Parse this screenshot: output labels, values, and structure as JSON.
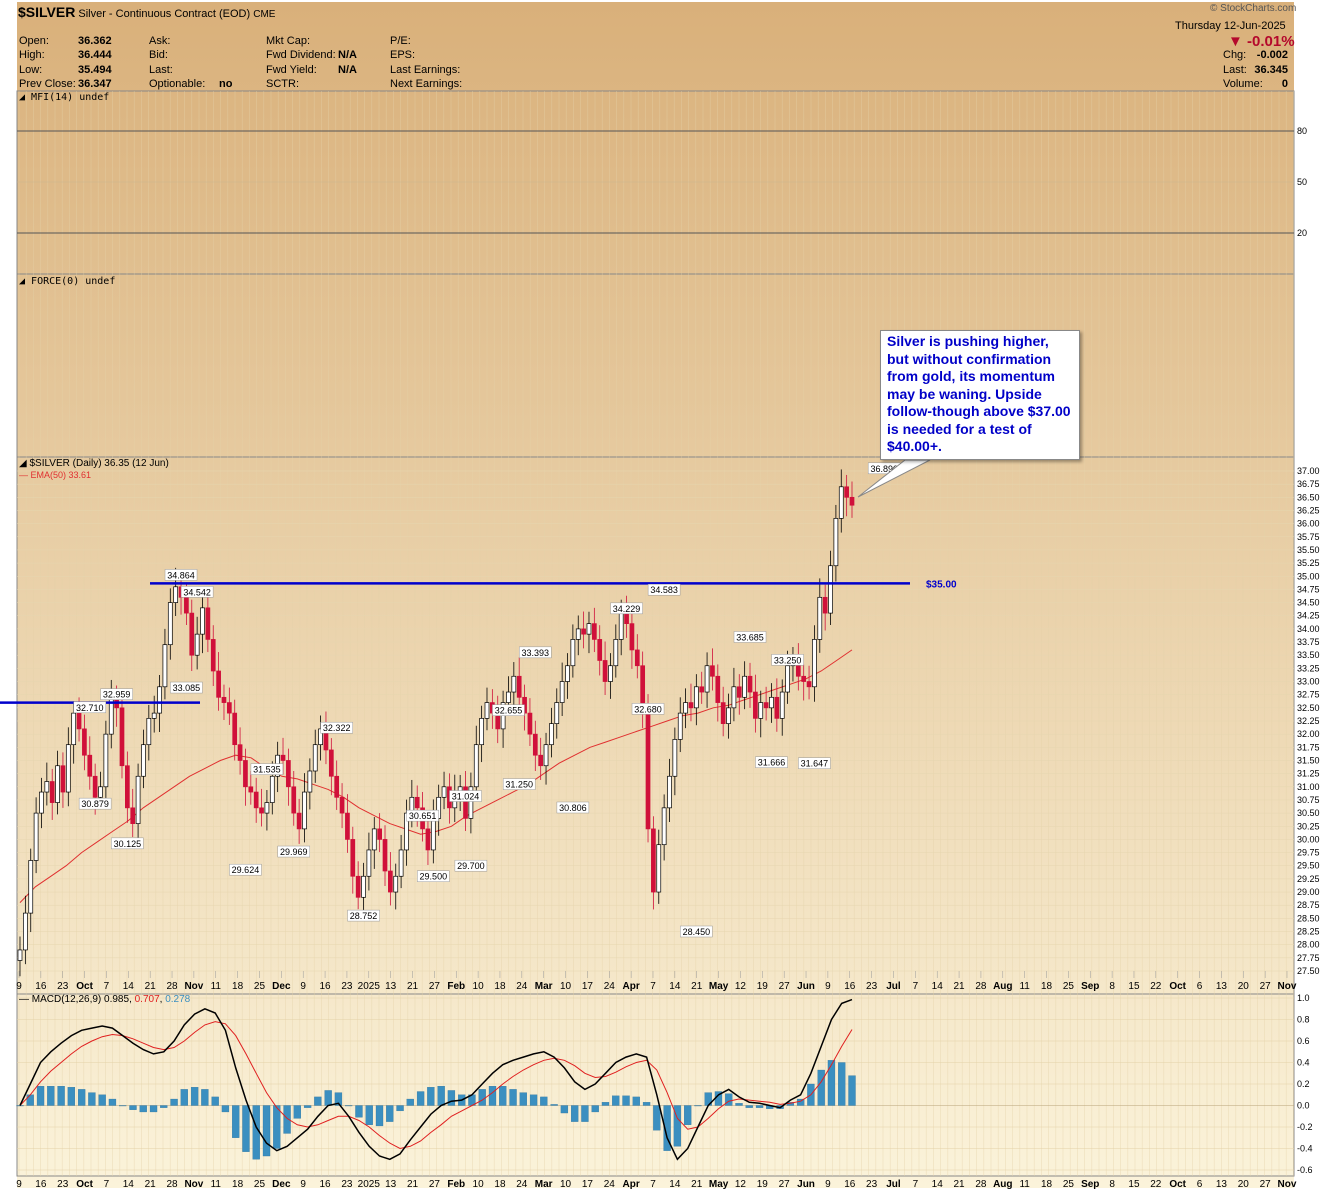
{
  "header": {
    "symbol": "$SILVER",
    "description": "Silver - Continuous Contract (EOD)",
    "exchange": "CME",
    "date_line": "Thursday  12-Jun-2025",
    "change_pct": "-0.01%",
    "watermark": "© StockCharts.com",
    "quote": {
      "open_label": "Open:",
      "open": "36.362",
      "high_label": "High:",
      "high": "36.444",
      "low_label": "Low:",
      "low": "35.494",
      "prev_label": "Prev Close:",
      "prev": "36.347",
      "ask_label": "Ask:",
      "bid_label": "Bid:",
      "last_label": "Last:",
      "optionable_label": "Optionable:",
      "optionable": "no",
      "mktcap_label": "Mkt Cap:",
      "fwddiv_label": "Fwd Dividend:",
      "fwddiv": "N/A",
      "fwdyield_label": "Fwd Yield:",
      "fwdyield": "N/A",
      "sctr_label": "SCTR:",
      "pe_label": "P/E:",
      "eps_label": "EPS:",
      "lastearn_label": "Last Earnings:",
      "nextearn_label": "Next Earnings:",
      "chg_label": "Chg:",
      "chg": "-0.002",
      "last_r_label": "Last:",
      "last_r": "36.345",
      "volume_label": "Volume:",
      "volume": "0"
    }
  },
  "colors": {
    "panel_bg": "#f5e8c4",
    "header_bg": "#d8b27e",
    "up_candle": "#000000",
    "down_candle": "#d0103a",
    "ema": "#e03030",
    "macd_line": "#000000",
    "signal_line": "#e02020",
    "histogram": "#3b8fc0",
    "hline": "#0000cc"
  },
  "chart_data": [
    {
      "type": "line",
      "title": "MFI(14) undef",
      "yticks": [
        "80",
        "50",
        "20"
      ],
      "ylim": [
        0,
        100
      ],
      "series": []
    },
    {
      "type": "line",
      "title": "FORCE(0) undef",
      "series": []
    },
    {
      "type": "candlestick",
      "title": "$SILVER (Daily) 36.35 (12 Jun)",
      "legend_ema": "EMA(50) 33.61",
      "ylim": [
        27.25,
        37.25
      ],
      "yticks": [
        "37.00",
        "36.75",
        "36.50",
        "36.25",
        "36.00",
        "35.75",
        "35.50",
        "35.25",
        "35.00",
        "34.75",
        "34.50",
        "34.25",
        "34.00",
        "33.75",
        "33.50",
        "33.25",
        "33.00",
        "32.75",
        "32.50",
        "32.25",
        "32.00",
        "31.75",
        "31.50",
        "31.25",
        "31.00",
        "30.75",
        "30.50",
        "30.25",
        "30.00",
        "29.75",
        "29.50",
        "29.25",
        "29.00",
        "28.75",
        "28.50",
        "28.25",
        "28.00",
        "27.75",
        "27.50"
      ],
      "xticks": [
        "9",
        "16",
        "23",
        "Oct",
        "7",
        "14",
        "21",
        "28",
        "Nov",
        "11",
        "18",
        "25",
        "Dec",
        "9",
        "16",
        "23",
        "2025",
        "13",
        "21",
        "27",
        "Feb",
        "10",
        "18",
        "24",
        "Mar",
        "10",
        "17",
        "24",
        "Apr",
        "7",
        "14",
        "21",
        "May",
        "12",
        "19",
        "27",
        "Jun",
        "9",
        "16",
        "23",
        "Jul",
        "7",
        "14",
        "21",
        "28",
        "Aug",
        "11",
        "18",
        "25",
        "Sep",
        "8",
        "15",
        "22",
        "Oct",
        "6",
        "13",
        "20",
        "27",
        "Nov"
      ],
      "close_series": [
        27.9,
        28.6,
        29.6,
        30.5,
        30.9,
        31.1,
        30.7,
        31.4,
        30.9,
        31.8,
        32.4,
        32.1,
        31.6,
        31.2,
        30.8,
        31.0,
        32.0,
        32.7,
        32.5,
        31.4,
        30.6,
        30.3,
        31.2,
        31.8,
        32.3,
        32.4,
        32.9,
        33.7,
        34.5,
        34.8,
        34.6,
        34.3,
        33.5,
        33.9,
        34.4,
        33.8,
        33.2,
        32.7,
        32.6,
        32.4,
        31.8,
        31.5,
        31.0,
        30.9,
        30.6,
        30.5,
        30.7,
        31.2,
        31.6,
        31.5,
        31.0,
        30.5,
        30.2,
        30.9,
        31.3,
        31.8,
        32.1,
        31.7,
        31.2,
        30.8,
        30.5,
        30.0,
        29.3,
        28.9,
        29.3,
        29.8,
        30.2,
        30.0,
        29.4,
        29.0,
        29.3,
        29.8,
        30.5,
        30.8,
        30.6,
        30.2,
        29.8,
        30.4,
        30.8,
        31.0,
        30.6,
        30.9,
        31.0,
        30.4,
        31.0,
        31.8,
        32.3,
        32.6,
        32.4,
        32.1,
        32.6,
        32.8,
        33.1,
        32.7,
        32.4,
        32.0,
        31.6,
        31.4,
        31.8,
        32.2,
        32.6,
        33.0,
        33.3,
        33.8,
        34.0,
        33.9,
        34.1,
        33.8,
        33.4,
        33.0,
        33.3,
        33.8,
        34.3,
        34.1,
        33.6,
        33.3,
        32.4,
        30.2,
        29.0,
        29.9,
        30.6,
        31.2,
        31.9,
        32.4,
        32.6,
        32.5,
        32.9,
        32.8,
        33.3,
        33.1,
        32.6,
        32.2,
        32.5,
        32.9,
        32.7,
        33.1,
        32.8,
        32.3,
        32.6,
        32.5,
        32.7,
        32.3,
        32.8,
        33.3,
        33.4,
        33.1,
        33.0,
        32.9,
        33.8,
        34.6,
        34.3,
        35.2,
        36.1,
        36.7,
        36.5,
        36.35
      ],
      "ema_series": [
        28.8,
        29.1,
        29.3,
        29.5,
        29.75,
        29.95,
        30.15,
        30.35,
        30.6,
        30.8,
        31.0,
        31.2,
        31.35,
        31.5,
        31.6,
        31.55,
        31.35,
        31.2,
        31.15,
        31.05,
        30.95,
        30.8,
        30.6,
        30.45,
        30.3,
        30.2,
        30.1,
        30.15,
        30.25,
        30.45,
        30.6,
        30.75,
        30.9,
        31.05,
        31.25,
        31.45,
        31.6,
        31.75,
        31.85,
        31.95,
        32.05,
        32.15,
        32.25,
        32.35,
        32.4,
        32.5,
        32.55,
        32.65,
        32.75,
        32.85,
        32.95,
        33.05,
        33.2,
        33.4,
        33.6
      ],
      "annotations": [
        {
          "text": "34.864",
          "x": 30,
          "y": 34.864
        },
        {
          "text": "34.542",
          "x": 33,
          "y": 34.542
        },
        {
          "text": "33.085",
          "x": 31,
          "y": 33.085
        },
        {
          "text": "32.710",
          "x": 13,
          "y": 32.71
        },
        {
          "text": "32.959",
          "x": 18,
          "y": 32.959
        },
        {
          "text": "30.879",
          "x": 14,
          "y": 30.879
        },
        {
          "text": "30.125",
          "x": 20,
          "y": 30.125
        },
        {
          "text": "31.535",
          "x": 46,
          "y": 31.535
        },
        {
          "text": "29.624",
          "x": 42,
          "y": 29.624
        },
        {
          "text": "29.969",
          "x": 51,
          "y": 29.969
        },
        {
          "text": "32.322",
          "x": 59,
          "y": 32.322
        },
        {
          "text": "28.752",
          "x": 64,
          "y": 28.752
        },
        {
          "text": "30.651",
          "x": 75,
          "y": 30.651
        },
        {
          "text": "29.500",
          "x": 77,
          "y": 29.5
        },
        {
          "text": "31.024",
          "x": 83,
          "y": 31.024
        },
        {
          "text": "29.700",
          "x": 84,
          "y": 29.7
        },
        {
          "text": "32.655",
          "x": 91,
          "y": 32.655
        },
        {
          "text": "31.250",
          "x": 93,
          "y": 31.25
        },
        {
          "text": "33.393",
          "x": 96,
          "y": 33.393
        },
        {
          "text": "30.806",
          "x": 103,
          "y": 30.806
        },
        {
          "text": "34.229",
          "x": 113,
          "y": 34.229
        },
        {
          "text": "32.680",
          "x": 117,
          "y": 32.68
        },
        {
          "text": "34.583",
          "x": 120,
          "y": 34.583
        },
        {
          "text": "28.450",
          "x": 126,
          "y": 28.45
        },
        {
          "text": "33.685",
          "x": 136,
          "y": 33.685
        },
        {
          "text": "31.666",
          "x": 140,
          "y": 31.666
        },
        {
          "text": "33.250",
          "x": 143,
          "y": 33.25
        },
        {
          "text": "31.647",
          "x": 148,
          "y": 31.647
        },
        {
          "text": "36.890",
          "x": 161,
          "y": 36.89
        }
      ],
      "hlines": [
        {
          "value": 34.864,
          "label": "$35.00"
        },
        {
          "value": 32.6,
          "label": ""
        }
      ],
      "callout": "Silver is pushing higher, but without confirmation from gold, its momentum may be waning. Upside follow-though above $37.00 is needed for a test of $40.00+."
    },
    {
      "type": "line",
      "title_prefix": "MACD(12,26,9)",
      "title_v1": "0.985",
      "title_v2": "0.707",
      "title_v3": "0.278",
      "ylim": [
        -0.65,
        1.05
      ],
      "yticks": [
        "1.0",
        "0.8",
        "0.6",
        "0.4",
        "0.2",
        "0.0",
        "-0.2",
        "-0.4",
        "-0.6"
      ],
      "macd_series": [
        0.0,
        0.2,
        0.4,
        0.5,
        0.58,
        0.65,
        0.7,
        0.72,
        0.74,
        0.72,
        0.65,
        0.58,
        0.52,
        0.48,
        0.5,
        0.6,
        0.75,
        0.85,
        0.9,
        0.86,
        0.7,
        0.35,
        0.05,
        -0.2,
        -0.35,
        -0.42,
        -0.38,
        -0.3,
        -0.22,
        -0.1,
        0.0,
        0.02,
        -0.1,
        -0.25,
        -0.38,
        -0.47,
        -0.5,
        -0.45,
        -0.32,
        -0.2,
        -0.08,
        0.0,
        0.04,
        0.05,
        0.1,
        0.2,
        0.3,
        0.38,
        0.42,
        0.45,
        0.48,
        0.5,
        0.45,
        0.35,
        0.22,
        0.15,
        0.2,
        0.3,
        0.4,
        0.45,
        0.48,
        0.45,
        0.1,
        -0.3,
        -0.5,
        -0.4,
        -0.2,
        0.0,
        0.1,
        0.15,
        0.08,
        0.03,
        0.02,
        0.0,
        -0.02,
        0.05,
        0.1,
        0.3,
        0.55,
        0.8,
        0.95,
        0.985
      ],
      "signal_series": [
        0.0,
        0.1,
        0.22,
        0.32,
        0.4,
        0.48,
        0.55,
        0.6,
        0.64,
        0.66,
        0.65,
        0.62,
        0.58,
        0.54,
        0.52,
        0.54,
        0.6,
        0.68,
        0.75,
        0.78,
        0.76,
        0.65,
        0.48,
        0.3,
        0.12,
        -0.02,
        -0.12,
        -0.18,
        -0.2,
        -0.18,
        -0.14,
        -0.1,
        -0.1,
        -0.14,
        -0.2,
        -0.28,
        -0.35,
        -0.4,
        -0.38,
        -0.33,
        -0.25,
        -0.18,
        -0.1,
        -0.05,
        0.0,
        0.05,
        0.12,
        0.2,
        0.27,
        0.33,
        0.38,
        0.42,
        0.44,
        0.42,
        0.37,
        0.3,
        0.26,
        0.27,
        0.31,
        0.36,
        0.4,
        0.42,
        0.33,
        0.12,
        -0.12,
        -0.22,
        -0.2,
        -0.12,
        -0.03,
        0.04,
        0.06,
        0.05,
        0.04,
        0.03,
        0.01,
        0.02,
        0.04,
        0.1,
        0.22,
        0.38,
        0.55,
        0.707
      ],
      "histogram_series": [
        0.0,
        0.1,
        0.18,
        0.18,
        0.18,
        0.17,
        0.15,
        0.12,
        0.1,
        0.06,
        0.0,
        -0.04,
        -0.06,
        -0.06,
        -0.02,
        0.06,
        0.15,
        0.17,
        0.15,
        0.08,
        -0.06,
        -0.3,
        -0.43,
        -0.5,
        -0.47,
        -0.4,
        -0.26,
        -0.12,
        -0.02,
        0.08,
        0.14,
        0.12,
        0.0,
        -0.11,
        -0.18,
        -0.19,
        -0.15,
        -0.05,
        0.06,
        0.13,
        0.17,
        0.18,
        0.14,
        0.1,
        0.1,
        0.15,
        0.18,
        0.18,
        0.15,
        0.12,
        0.1,
        0.08,
        0.01,
        -0.07,
        -0.15,
        -0.15,
        -0.06,
        0.03,
        0.09,
        0.09,
        0.08,
        0.03,
        -0.23,
        -0.42,
        -0.38,
        -0.18,
        0.0,
        0.12,
        0.13,
        0.11,
        0.02,
        -0.02,
        -0.02,
        -0.03,
        -0.03,
        0.03,
        0.06,
        0.2,
        0.33,
        0.42,
        0.4,
        0.278
      ]
    }
  ]
}
